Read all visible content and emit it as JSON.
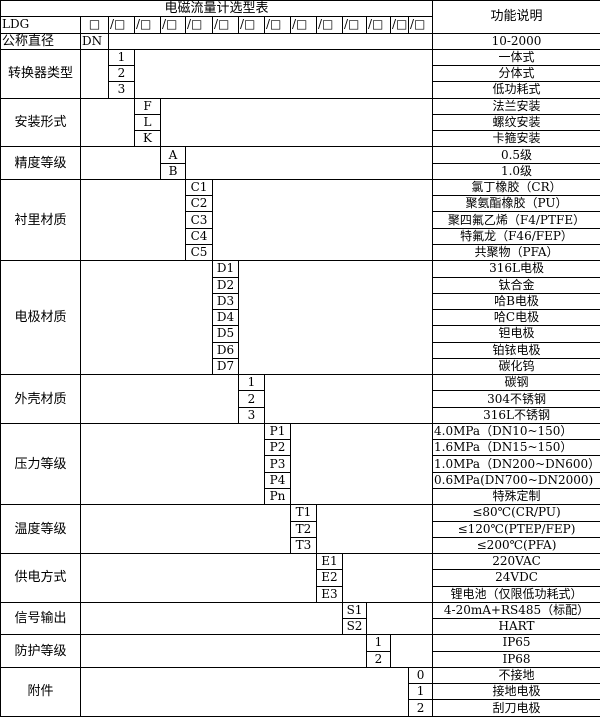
{
  "header": {
    "title": "电磁流量计选型表",
    "function_title": "功能说明",
    "model_prefix": "LDG",
    "first_box": "□",
    "slot_boxes": [
      "/□",
      "/□",
      "/□",
      "/□",
      "/□",
      "/□",
      "/□",
      "/□",
      "/□",
      "/□",
      "/□",
      "/□",
      "/□"
    ],
    "nominal_label": "公称直径",
    "nominal_code": "DN",
    "nominal_desc": "10-2000"
  },
  "sections": [
    {
      "label": "转换器类型",
      "column": 1,
      "options": [
        {
          "code": "1",
          "desc": "一体式"
        },
        {
          "code": "2",
          "desc": "分体式"
        },
        {
          "code": "3",
          "desc": "低功耗式"
        }
      ]
    },
    {
      "label": "安装形式",
      "column": 2,
      "options": [
        {
          "code": "F",
          "desc": "法兰安装"
        },
        {
          "code": "L",
          "desc": "螺纹安装"
        },
        {
          "code": "K",
          "desc": "卡箍安装"
        }
      ]
    },
    {
      "label": "精度等级",
      "column": 3,
      "options": [
        {
          "code": "A",
          "desc": "0.5级"
        },
        {
          "code": "B",
          "desc": "1.0级"
        }
      ]
    },
    {
      "label": "衬里材质",
      "column": 4,
      "options": [
        {
          "code": "C1",
          "desc": "氯丁橡胶（CR）"
        },
        {
          "code": "C2",
          "desc": "聚氨酯橡胶（PU）"
        },
        {
          "code": "C3",
          "desc": "聚四氟乙烯（F4/PTFE）"
        },
        {
          "code": "C4",
          "desc": "特氟龙（F46/FEP）"
        },
        {
          "code": "C5",
          "desc": "共聚物（PFA）"
        }
      ]
    },
    {
      "label": "电极材质",
      "column": 5,
      "options": [
        {
          "code": "D1",
          "desc": "316L电极"
        },
        {
          "code": "D2",
          "desc": "钛合金"
        },
        {
          "code": "D3",
          "desc": "哈B电极"
        },
        {
          "code": "D4",
          "desc": "哈C电极"
        },
        {
          "code": "D5",
          "desc": "钽电极"
        },
        {
          "code": "D6",
          "desc": "铂铱电极"
        },
        {
          "code": "D7",
          "desc": "碳化钨"
        }
      ]
    },
    {
      "label": "外壳材质",
      "column": 6,
      "options": [
        {
          "code": "1",
          "desc": "碳钢"
        },
        {
          "code": "2",
          "desc": "304不锈钢"
        },
        {
          "code": "3",
          "desc": "316L不锈钢"
        }
      ]
    },
    {
      "label": "压力等级",
      "column": 7,
      "options": [
        {
          "code": "P1",
          "desc": "4.0MPa（DN10~150）",
          "left": true
        },
        {
          "code": "P2",
          "desc": "1.6MPa（DN15~150）",
          "left": true
        },
        {
          "code": "P3",
          "desc": "1.0MPa（DN200~DN600）",
          "left": true
        },
        {
          "code": "P4",
          "desc": "0.6MPa(DN700~DN2000)",
          "left": true
        },
        {
          "code": "Pn",
          "desc": "特殊定制"
        }
      ]
    },
    {
      "label": "温度等级",
      "column": 8,
      "options": [
        {
          "code": "T1",
          "desc": "≤80℃(CR/PU)"
        },
        {
          "code": "T2",
          "desc": "≤120℃(PTEP/FEP)"
        },
        {
          "code": "T3",
          "desc": "≤200℃(PFA)"
        }
      ]
    },
    {
      "label": "供电方式",
      "column": 9,
      "options": [
        {
          "code": "E1",
          "desc": "220VAC"
        },
        {
          "code": "E2",
          "desc": "24VDC"
        },
        {
          "code": "E3",
          "desc": "锂电池（仅限低功耗式）"
        }
      ]
    },
    {
      "label": "信号输出",
      "column": 10,
      "options": [
        {
          "code": "S1",
          "desc": "4-20mA+RS485（标配）"
        },
        {
          "code": "S2",
          "desc": "HART"
        }
      ]
    },
    {
      "label": "防护等级",
      "column": 11,
      "options": [
        {
          "code": "1",
          "desc": "IP65"
        },
        {
          "code": "2",
          "desc": "IP68"
        }
      ]
    },
    {
      "label": "附件",
      "column": 13,
      "options": [
        {
          "code": "0",
          "desc": "不接地"
        },
        {
          "code": "1",
          "desc": "接地电极"
        },
        {
          "code": "2",
          "desc": "刮刀电极"
        }
      ]
    }
  ]
}
